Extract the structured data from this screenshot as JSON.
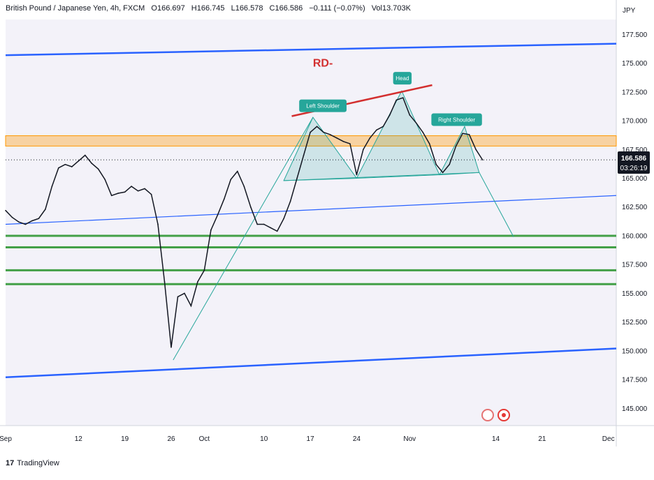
{
  "header": {
    "symbol": "British Pound / Japanese Yen, 4h, FXCM",
    "open": "O166.697",
    "high": "H166.745",
    "low": "L166.578",
    "close": "C166.586",
    "change": "−0.111 (−0.07%)",
    "volume": "Vol13.703K"
  },
  "footer": {
    "logo": "🜟",
    "brand": "TradingView"
  },
  "chart_data": {
    "type": "line",
    "currency_label": "JPY",
    "price_ticks": [
      "177.500",
      "175.000",
      "172.500",
      "170.000",
      "167.500",
      "165.000",
      "162.500",
      "160.000",
      "157.500",
      "155.000",
      "152.500",
      "150.000",
      "147.500",
      "145.000"
    ],
    "ylim": [
      143.5,
      178.8
    ],
    "date_ticks": [
      {
        "label": "Sep",
        "day": 0
      },
      {
        "label": "12",
        "day": 11
      },
      {
        "label": "19",
        "day": 18
      },
      {
        "label": "26",
        "day": 25
      },
      {
        "label": "Oct",
        "day": 30
      },
      {
        "label": "10",
        "day": 39
      },
      {
        "label": "17",
        "day": 46
      },
      {
        "label": "24",
        "day": 53
      },
      {
        "label": "Nov",
        "day": 61
      },
      {
        "label": "14",
        "day": 74
      },
      {
        "label": "21",
        "day": 81
      },
      {
        "label": "Dec",
        "day": 91
      }
    ],
    "current_price": "166.586",
    "countdown": "03:26:19",
    "current_price_color": "#131722",
    "series": [
      {
        "points": [
          [
            0,
            162.2
          ],
          [
            1,
            161.6
          ],
          [
            2,
            161.2
          ],
          [
            3,
            161.0
          ],
          [
            4,
            161.3
          ],
          [
            5,
            161.5
          ],
          [
            6,
            162.3
          ],
          [
            7,
            164.3
          ],
          [
            8,
            165.9
          ],
          [
            9,
            166.2
          ],
          [
            10,
            166.0
          ],
          [
            11,
            166.5
          ],
          [
            12,
            167.0
          ],
          [
            13,
            166.3
          ],
          [
            14,
            165.8
          ],
          [
            15,
            164.9
          ],
          [
            16,
            163.5
          ],
          [
            17,
            163.7
          ],
          [
            18,
            163.8
          ],
          [
            19,
            164.3
          ],
          [
            20,
            163.9
          ],
          [
            21,
            164.1
          ],
          [
            22,
            163.6
          ],
          [
            23,
            161.0
          ],
          [
            24,
            156.0
          ],
          [
            25,
            150.3
          ],
          [
            26,
            154.7
          ],
          [
            27,
            155.0
          ],
          [
            28,
            153.9
          ],
          [
            29,
            156.0
          ],
          [
            30,
            157.0
          ],
          [
            31,
            160.5
          ],
          [
            32,
            161.8
          ],
          [
            33,
            163.2
          ],
          [
            34,
            164.9
          ],
          [
            35,
            165.6
          ],
          [
            36,
            164.3
          ],
          [
            37,
            162.5
          ],
          [
            38,
            161.0
          ],
          [
            39,
            161.0
          ],
          [
            40,
            160.7
          ],
          [
            41,
            160.4
          ],
          [
            42,
            161.5
          ],
          [
            43,
            163.0
          ],
          [
            44,
            165.0
          ],
          [
            45,
            167.0
          ],
          [
            46,
            169.0
          ],
          [
            47,
            169.5
          ],
          [
            48,
            169.0
          ],
          [
            49,
            168.8
          ],
          [
            50,
            168.5
          ],
          [
            51,
            168.2
          ],
          [
            52,
            168.0
          ],
          [
            53,
            165.3
          ],
          [
            54,
            167.5
          ],
          [
            55,
            168.5
          ],
          [
            56,
            169.2
          ],
          [
            57,
            169.5
          ],
          [
            58,
            170.5
          ],
          [
            59,
            171.8
          ],
          [
            60,
            172.0
          ],
          [
            61,
            170.5
          ],
          [
            62,
            169.8
          ],
          [
            63,
            169.0
          ],
          [
            64,
            168.0
          ],
          [
            65,
            166.2
          ],
          [
            66,
            165.5
          ],
          [
            67,
            166.2
          ],
          [
            68,
            167.8
          ],
          [
            69,
            168.9
          ],
          [
            70,
            168.8
          ],
          [
            71,
            167.5
          ],
          [
            72,
            166.6
          ]
        ]
      }
    ],
    "drawings": {
      "channel_lines_color": "#2962ff",
      "support_color": "#43a047",
      "support_levels": [
        160.0,
        159.0,
        157.0,
        155.8
      ],
      "resistance_zone": [
        167.8,
        168.7
      ],
      "resistance_color": "#ff9800",
      "pattern_color": "#26a69a",
      "neckline_color": "#d32f2f",
      "labels": {
        "left_shoulder": "Left Shoulder",
        "head": "Head",
        "right_shoulder": "Right Shoulder",
        "rd": "RD-"
      }
    }
  }
}
